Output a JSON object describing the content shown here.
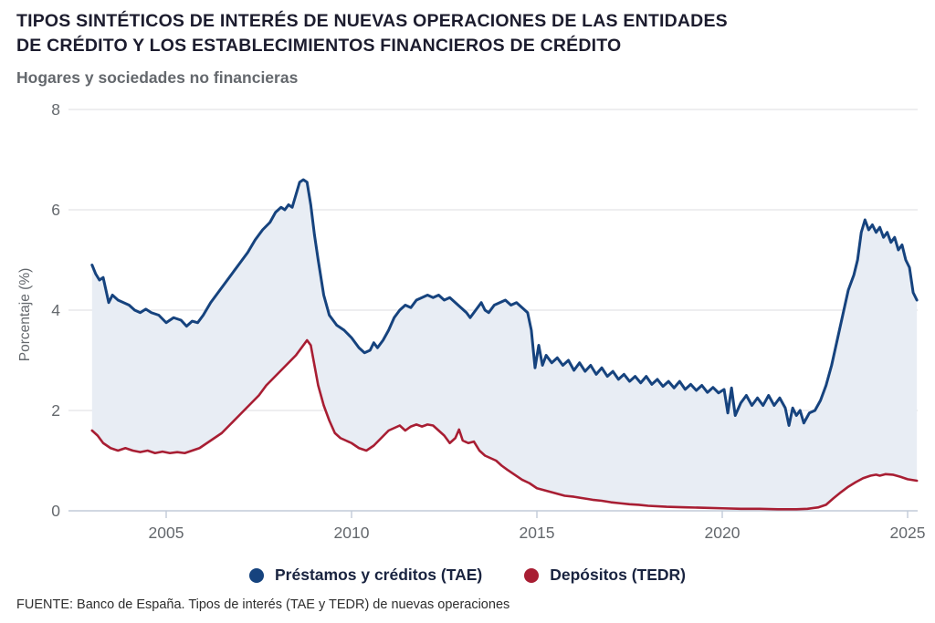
{
  "header": {
    "title_line1": "TIPOS SINTÉTICOS DE INTERÉS DE NUEVAS OPERACIONES DE LAS ENTIDADES",
    "title_line2": "DE CRÉDITO Y LOS ESTABLECIMIENTOS FINANCIEROS DE CRÉDITO",
    "subtitle": "Hogares y sociedades no financieras"
  },
  "footer": {
    "source": "FUENTE: Banco de España. Tipos de interés (TAE y TEDR) de nuevas operaciones"
  },
  "colors": {
    "loans_line": "#16437e",
    "deposits_line": "#a81e33",
    "band_fill": "#e8edf4",
    "grid": "#e3e4e6",
    "axis": "#c2cbd8",
    "tick_text": "#64686d"
  },
  "chart_data": {
    "type": "line",
    "title": "Tipos sintéticos de interés de nuevas operaciones de las entidades de crédito y los establecimientos financieros de crédito",
    "subtitle": "Hogares y sociedades no financieras",
    "xlabel": "",
    "ylabel": "Porcentaje (%)",
    "ylim": [
      0,
      8
    ],
    "yticks": [
      0,
      2,
      4,
      6,
      8
    ],
    "xticks": [
      2005,
      2010,
      2015,
      2020,
      2025
    ],
    "xlim": [
      2003,
      2025.3
    ],
    "grid": true,
    "legend_position": "bottom",
    "fill_between_series": true,
    "fill_color": "#e8edf4",
    "series": [
      {
        "name": "Préstamos y créditos (TAE)",
        "color": "#16437e",
        "x": [
          2003.0,
          2003.1,
          2003.2,
          2003.3,
          2003.45,
          2003.55,
          2003.7,
          2003.85,
          2004.0,
          2004.15,
          2004.3,
          2004.45,
          2004.6,
          2004.8,
          2005.0,
          2005.2,
          2005.4,
          2005.55,
          2005.7,
          2005.85,
          2006.0,
          2006.2,
          2006.4,
          2006.6,
          2006.8,
          2007.0,
          2007.2,
          2007.4,
          2007.6,
          2007.8,
          2007.95,
          2008.1,
          2008.2,
          2008.3,
          2008.4,
          2008.5,
          2008.6,
          2008.7,
          2008.8,
          2008.9,
          2009.0,
          2009.1,
          2009.25,
          2009.4,
          2009.6,
          2009.8,
          2010.0,
          2010.2,
          2010.35,
          2010.5,
          2010.6,
          2010.7,
          2010.85,
          2011.0,
          2011.15,
          2011.3,
          2011.45,
          2011.6,
          2011.75,
          2011.9,
          2012.05,
          2012.2,
          2012.35,
          2012.5,
          2012.65,
          2012.8,
          2012.95,
          2013.1,
          2013.2,
          2013.35,
          2013.5,
          2013.6,
          2013.7,
          2013.85,
          2014.0,
          2014.15,
          2014.3,
          2014.45,
          2014.6,
          2014.75,
          2014.85,
          2014.95,
          2015.05,
          2015.15,
          2015.25,
          2015.4,
          2015.55,
          2015.7,
          2015.85,
          2016.0,
          2016.15,
          2016.3,
          2016.45,
          2016.6,
          2016.75,
          2016.9,
          2017.05,
          2017.2,
          2017.35,
          2017.5,
          2017.65,
          2017.8,
          2017.95,
          2018.1,
          2018.25,
          2018.4,
          2018.55,
          2018.7,
          2018.85,
          2019.0,
          2019.15,
          2019.3,
          2019.45,
          2019.6,
          2019.75,
          2019.9,
          2020.05,
          2020.15,
          2020.25,
          2020.35,
          2020.5,
          2020.65,
          2020.8,
          2020.95,
          2021.1,
          2021.25,
          2021.4,
          2021.55,
          2021.7,
          2021.8,
          2021.9,
          2022.0,
          2022.1,
          2022.2,
          2022.35,
          2022.5,
          2022.65,
          2022.8,
          2022.95,
          2023.1,
          2023.25,
          2023.4,
          2023.55,
          2023.65,
          2023.75,
          2023.85,
          2023.95,
          2024.05,
          2024.15,
          2024.25,
          2024.35,
          2024.45,
          2024.55,
          2024.65,
          2024.75,
          2024.85,
          2024.95,
          2025.05,
          2025.15,
          2025.25
        ],
        "values": [
          4.9,
          4.72,
          4.6,
          4.65,
          4.15,
          4.3,
          4.2,
          4.15,
          4.1,
          4.0,
          3.95,
          4.02,
          3.95,
          3.9,
          3.75,
          3.85,
          3.8,
          3.68,
          3.78,
          3.75,
          3.9,
          4.15,
          4.35,
          4.55,
          4.75,
          4.95,
          5.15,
          5.4,
          5.6,
          5.75,
          5.95,
          6.05,
          6.0,
          6.1,
          6.05,
          6.3,
          6.55,
          6.6,
          6.55,
          6.1,
          5.5,
          5.0,
          4.3,
          3.9,
          3.7,
          3.6,
          3.45,
          3.25,
          3.15,
          3.2,
          3.35,
          3.25,
          3.4,
          3.6,
          3.85,
          4.0,
          4.1,
          4.05,
          4.2,
          4.25,
          4.3,
          4.25,
          4.3,
          4.2,
          4.25,
          4.15,
          4.05,
          3.95,
          3.85,
          4.0,
          4.15,
          4.0,
          3.95,
          4.1,
          4.15,
          4.2,
          4.1,
          4.15,
          4.05,
          3.95,
          3.6,
          2.85,
          3.3,
          2.9,
          3.1,
          2.95,
          3.05,
          2.9,
          3.0,
          2.8,
          2.95,
          2.78,
          2.9,
          2.72,
          2.85,
          2.68,
          2.78,
          2.62,
          2.72,
          2.58,
          2.68,
          2.55,
          2.68,
          2.52,
          2.62,
          2.48,
          2.58,
          2.45,
          2.58,
          2.42,
          2.52,
          2.4,
          2.5,
          2.36,
          2.46,
          2.35,
          2.42,
          1.95,
          2.45,
          1.9,
          2.15,
          2.3,
          2.1,
          2.25,
          2.1,
          2.3,
          2.1,
          2.25,
          2.05,
          1.7,
          2.05,
          1.9,
          2.0,
          1.75,
          1.95,
          2.0,
          2.2,
          2.5,
          2.9,
          3.4,
          3.9,
          4.4,
          4.7,
          5.0,
          5.55,
          5.8,
          5.6,
          5.7,
          5.55,
          5.65,
          5.45,
          5.55,
          5.35,
          5.45,
          5.2,
          5.3,
          5.0,
          4.85,
          4.35,
          4.2
        ]
      },
      {
        "name": "Depósitos (TEDR)",
        "color": "#a81e33",
        "x": [
          2003.0,
          2003.15,
          2003.3,
          2003.5,
          2003.7,
          2003.9,
          2004.1,
          2004.3,
          2004.5,
          2004.7,
          2004.9,
          2005.1,
          2005.3,
          2005.5,
          2005.7,
          2005.9,
          2006.1,
          2006.3,
          2006.5,
          2006.7,
          2006.9,
          2007.1,
          2007.3,
          2007.5,
          2007.7,
          2007.9,
          2008.1,
          2008.3,
          2008.5,
          2008.65,
          2008.8,
          2008.9,
          2009.0,
          2009.1,
          2009.25,
          2009.4,
          2009.55,
          2009.7,
          2009.85,
          2010.0,
          2010.2,
          2010.4,
          2010.6,
          2010.8,
          2011.0,
          2011.15,
          2011.3,
          2011.45,
          2011.6,
          2011.75,
          2011.9,
          2012.05,
          2012.2,
          2012.35,
          2012.5,
          2012.65,
          2012.8,
          2012.9,
          2013.0,
          2013.15,
          2013.3,
          2013.45,
          2013.6,
          2013.75,
          2013.9,
          2014.05,
          2014.2,
          2014.4,
          2014.6,
          2014.8,
          2015.0,
          2015.25,
          2015.5,
          2015.75,
          2016.0,
          2016.25,
          2016.5,
          2016.75,
          2017.0,
          2017.25,
          2017.5,
          2017.75,
          2018.0,
          2018.5,
          2019.0,
          2019.5,
          2020.0,
          2020.5,
          2021.0,
          2021.5,
          2022.0,
          2022.3,
          2022.6,
          2022.8,
          2023.0,
          2023.2,
          2023.4,
          2023.6,
          2023.8,
          2024.0,
          2024.15,
          2024.25,
          2024.4,
          2024.6,
          2024.8,
          2025.0,
          2025.25
        ],
        "values": [
          1.6,
          1.5,
          1.35,
          1.25,
          1.2,
          1.25,
          1.2,
          1.17,
          1.2,
          1.15,
          1.18,
          1.15,
          1.17,
          1.15,
          1.2,
          1.25,
          1.35,
          1.45,
          1.55,
          1.7,
          1.85,
          2.0,
          2.15,
          2.3,
          2.5,
          2.65,
          2.8,
          2.95,
          3.1,
          3.25,
          3.4,
          3.3,
          2.9,
          2.5,
          2.1,
          1.8,
          1.55,
          1.45,
          1.4,
          1.35,
          1.25,
          1.2,
          1.3,
          1.45,
          1.6,
          1.65,
          1.7,
          1.6,
          1.68,
          1.72,
          1.68,
          1.72,
          1.7,
          1.6,
          1.5,
          1.35,
          1.45,
          1.62,
          1.4,
          1.35,
          1.38,
          1.2,
          1.1,
          1.05,
          1.0,
          0.9,
          0.82,
          0.72,
          0.62,
          0.55,
          0.45,
          0.4,
          0.35,
          0.3,
          0.28,
          0.25,
          0.22,
          0.2,
          0.17,
          0.15,
          0.13,
          0.12,
          0.1,
          0.08,
          0.07,
          0.06,
          0.05,
          0.04,
          0.04,
          0.03,
          0.03,
          0.04,
          0.07,
          0.12,
          0.25,
          0.37,
          0.48,
          0.57,
          0.65,
          0.7,
          0.72,
          0.7,
          0.73,
          0.72,
          0.68,
          0.63,
          0.6
        ]
      }
    ]
  }
}
